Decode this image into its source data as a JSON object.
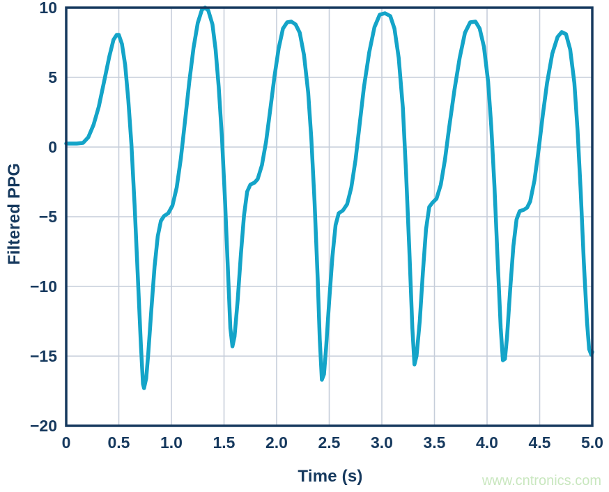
{
  "watermark": {
    "text": "www.cntronics.com",
    "color": "#c9e7bf"
  },
  "chart_data": {
    "type": "line",
    "xlabel": "Time (s)",
    "ylabel": "Filtered PPG",
    "xlim": [
      0,
      5
    ],
    "ylim": [
      -20,
      10
    ],
    "x_ticks": [
      0,
      0.5,
      1,
      1.5,
      2,
      2.5,
      3,
      3.5,
      4,
      4.5,
      5
    ],
    "x_tick_labels": [
      "0",
      "0.5",
      "1.0",
      "1.5",
      "2.0",
      "2.5",
      "3.0",
      "3.5",
      "4.0",
      "4.5",
      "5.0"
    ],
    "y_ticks": [
      10,
      5,
      0,
      -5,
      -10,
      -15,
      -20
    ],
    "y_tick_labels": [
      "10",
      "5",
      "0",
      "−5",
      "−10",
      "−15",
      "−20"
    ],
    "grid": true,
    "frame": true,
    "legend": false,
    "colors": {
      "axis": "#16395e",
      "grid": "#c6ceda",
      "line": "#14a4c8"
    },
    "series": [
      {
        "name": "Filtered PPG",
        "color": "#14a4c8",
        "points": [
          [
            0,
            0.25
          ],
          [
            0.1,
            0.25
          ],
          [
            0.16,
            0.3
          ],
          [
            0.21,
            0.7
          ],
          [
            0.26,
            1.6
          ],
          [
            0.31,
            2.9
          ],
          [
            0.36,
            4.7
          ],
          [
            0.41,
            6.5
          ],
          [
            0.45,
            7.7
          ],
          [
            0.48,
            8.05
          ],
          [
            0.5,
            8.05
          ],
          [
            0.53,
            7.4
          ],
          [
            0.56,
            5.9
          ],
          [
            0.59,
            3.4
          ],
          [
            0.62,
            0.2
          ],
          [
            0.65,
            -4.2
          ],
          [
            0.68,
            -9.2
          ],
          [
            0.71,
            -14.2
          ],
          [
            0.73,
            -17.0
          ],
          [
            0.74,
            -17.3
          ],
          [
            0.76,
            -16.6
          ],
          [
            0.78,
            -14.8
          ],
          [
            0.81,
            -11.6
          ],
          [
            0.84,
            -8.6
          ],
          [
            0.87,
            -6.4
          ],
          [
            0.9,
            -5.3
          ],
          [
            0.93,
            -4.95
          ],
          [
            0.97,
            -4.75
          ],
          [
            1.01,
            -4.2
          ],
          [
            1.05,
            -2.9
          ],
          [
            1.09,
            -0.8
          ],
          [
            1.13,
            1.9
          ],
          [
            1.17,
            4.7
          ],
          [
            1.21,
            7.1
          ],
          [
            1.25,
            8.9
          ],
          [
            1.29,
            9.85
          ],
          [
            1.32,
            10.0
          ],
          [
            1.35,
            9.8
          ],
          [
            1.39,
            8.8
          ],
          [
            1.42,
            7.0
          ],
          [
            1.45,
            4.3
          ],
          [
            1.48,
            0.7
          ],
          [
            1.51,
            -3.9
          ],
          [
            1.54,
            -9.3
          ],
          [
            1.56,
            -13.0
          ],
          [
            1.58,
            -14.3
          ],
          [
            1.6,
            -13.6
          ],
          [
            1.63,
            -11.0
          ],
          [
            1.66,
            -7.7
          ],
          [
            1.69,
            -4.9
          ],
          [
            1.72,
            -3.2
          ],
          [
            1.75,
            -2.7
          ],
          [
            1.79,
            -2.55
          ],
          [
            1.82,
            -2.3
          ],
          [
            1.86,
            -1.3
          ],
          [
            1.9,
            0.4
          ],
          [
            1.94,
            2.7
          ],
          [
            1.98,
            5.1
          ],
          [
            2.02,
            7.1
          ],
          [
            2.06,
            8.5
          ],
          [
            2.1,
            8.95
          ],
          [
            2.14,
            9.0
          ],
          [
            2.18,
            8.8
          ],
          [
            2.22,
            8.2
          ],
          [
            2.26,
            6.6
          ],
          [
            2.3,
            3.9
          ],
          [
            2.33,
            0.6
          ],
          [
            2.36,
            -3.9
          ],
          [
            2.39,
            -9.4
          ],
          [
            2.41,
            -13.8
          ],
          [
            2.43,
            -16.7
          ],
          [
            2.45,
            -16.3
          ],
          [
            2.47,
            -14.4
          ],
          [
            2.5,
            -11.0
          ],
          [
            2.53,
            -7.9
          ],
          [
            2.56,
            -5.6
          ],
          [
            2.59,
            -4.75
          ],
          [
            2.63,
            -4.55
          ],
          [
            2.67,
            -4.1
          ],
          [
            2.71,
            -2.9
          ],
          [
            2.75,
            -0.9
          ],
          [
            2.79,
            1.7
          ],
          [
            2.83,
            4.3
          ],
          [
            2.88,
            6.8
          ],
          [
            2.93,
            8.6
          ],
          [
            2.98,
            9.5
          ],
          [
            3.03,
            9.6
          ],
          [
            3.08,
            9.4
          ],
          [
            3.12,
            8.5
          ],
          [
            3.16,
            6.4
          ],
          [
            3.2,
            2.8
          ],
          [
            3.23,
            -1.8
          ],
          [
            3.26,
            -7.2
          ],
          [
            3.29,
            -13.0
          ],
          [
            3.31,
            -15.6
          ],
          [
            3.33,
            -15.0
          ],
          [
            3.36,
            -12.5
          ],
          [
            3.39,
            -9.0
          ],
          [
            3.42,
            -5.9
          ],
          [
            3.45,
            -4.3
          ],
          [
            3.48,
            -4.0
          ],
          [
            3.52,
            -3.7
          ],
          [
            3.56,
            -2.7
          ],
          [
            3.6,
            -0.9
          ],
          [
            3.64,
            1.4
          ],
          [
            3.69,
            4.1
          ],
          [
            3.74,
            6.4
          ],
          [
            3.79,
            8.2
          ],
          [
            3.84,
            8.95
          ],
          [
            3.89,
            9.0
          ],
          [
            3.93,
            8.5
          ],
          [
            3.97,
            7.2
          ],
          [
            4.01,
            4.7
          ],
          [
            4.04,
            1.5
          ],
          [
            4.07,
            -2.8
          ],
          [
            4.1,
            -8.0
          ],
          [
            4.13,
            -13.0
          ],
          [
            4.15,
            -15.3
          ],
          [
            4.17,
            -15.2
          ],
          [
            4.19,
            -13.6
          ],
          [
            4.22,
            -10.2
          ],
          [
            4.25,
            -7.1
          ],
          [
            4.28,
            -5.2
          ],
          [
            4.31,
            -4.6
          ],
          [
            4.35,
            -4.5
          ],
          [
            4.38,
            -4.35
          ],
          [
            4.41,
            -3.9
          ],
          [
            4.45,
            -2.4
          ],
          [
            4.49,
            -0.2
          ],
          [
            4.53,
            2.3
          ],
          [
            4.57,
            4.6
          ],
          [
            4.62,
            6.7
          ],
          [
            4.67,
            7.9
          ],
          [
            4.71,
            8.25
          ],
          [
            4.75,
            8.1
          ],
          [
            4.79,
            7.0
          ],
          [
            4.83,
            4.6
          ],
          [
            4.86,
            1.2
          ],
          [
            4.89,
            -3.2
          ],
          [
            4.92,
            -8.3
          ],
          [
            4.95,
            -12.6
          ],
          [
            4.97,
            -14.5
          ],
          [
            4.99,
            -14.9
          ],
          [
            5,
            -14.7
          ]
        ]
      }
    ]
  }
}
